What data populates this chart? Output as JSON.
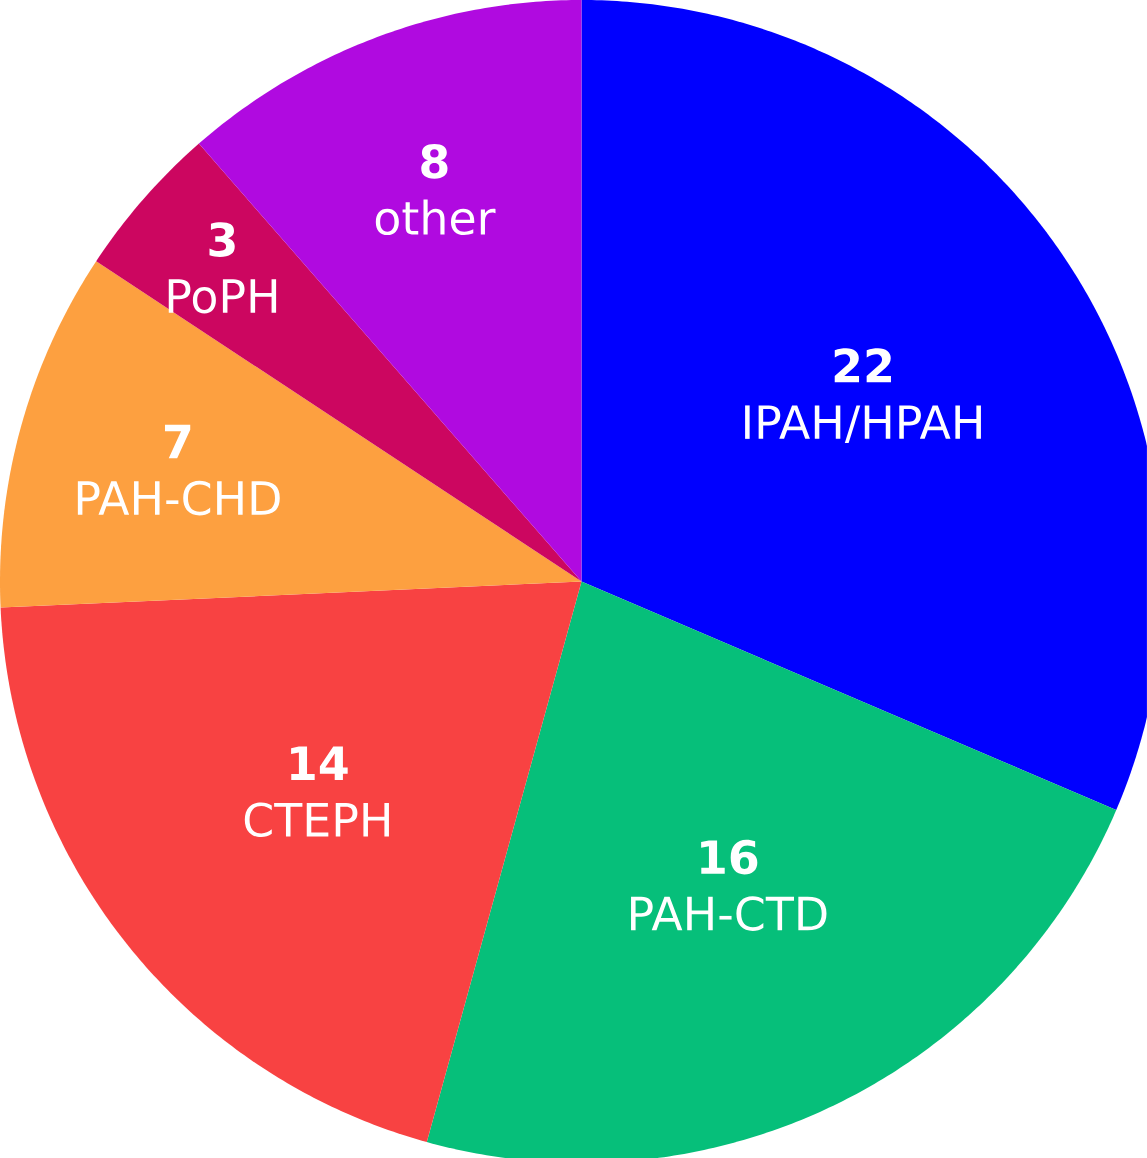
{
  "chart_data": {
    "type": "pie",
    "categories": [
      "IPAH/HPAH",
      "PAH-CTD",
      "CTEPH",
      "PAH-CHD",
      "PoPH",
      "other"
    ],
    "values": [
      22,
      16,
      14,
      7,
      3,
      8
    ],
    "colors": [
      "#0000ff",
      "#06bf7a",
      "#f84242",
      "#fda040",
      "#cc0660",
      "#b00ae0"
    ],
    "data_labels": true
  }
}
